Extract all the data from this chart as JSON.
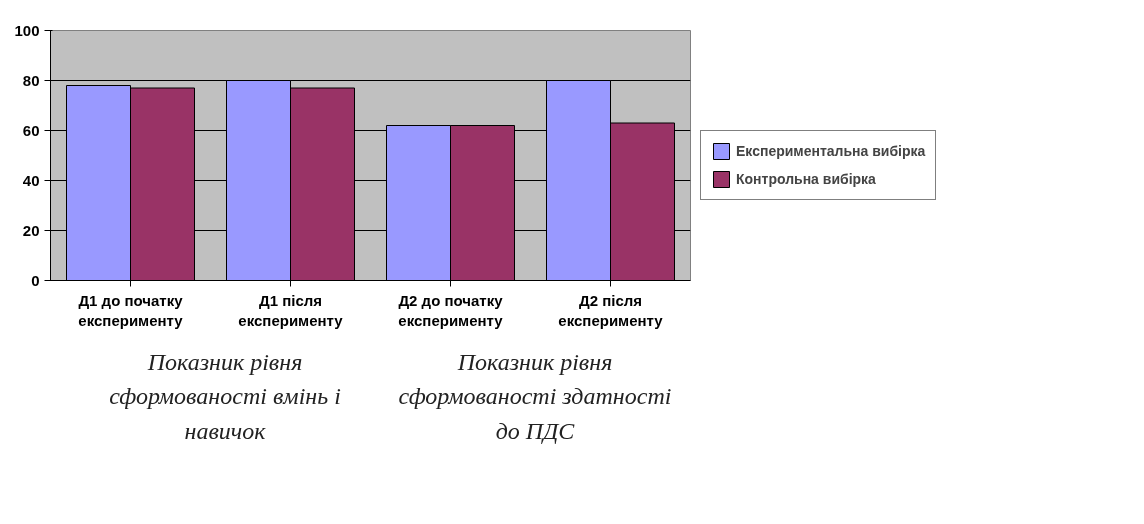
{
  "chart_data": {
    "type": "bar",
    "categories": [
      "Д1 до початку експерименту",
      "Д1 після експерименту",
      "Д2 до початку експерименту",
      "Д2 після експерименту"
    ],
    "series": [
      {
        "name": "Експериментальна вибірка",
        "color": "#9999ff",
        "values": [
          78,
          80,
          62,
          80
        ]
      },
      {
        "name": "Контрольна вибірка",
        "color": "#993366",
        "values": [
          77,
          77,
          62,
          63
        ]
      }
    ],
    "ylim": [
      0,
      100
    ],
    "yticks": [
      0,
      20,
      40,
      60,
      80,
      100
    ],
    "grid": "y",
    "legend": "right",
    "annotations": [
      "Показник рівня сформованості вмінь і навичок",
      "Показник рівня сформованості здатності до ПДС"
    ]
  }
}
